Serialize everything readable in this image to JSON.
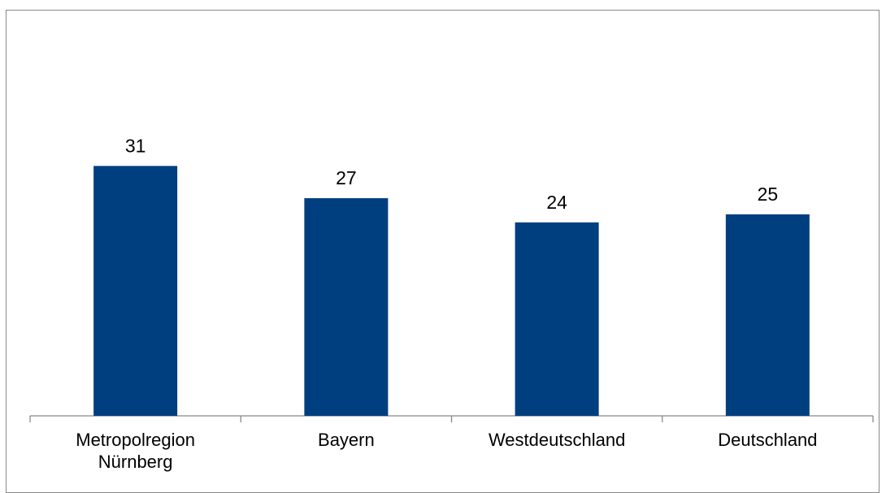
{
  "chart_data": {
    "type": "bar",
    "categories": [
      "Metropolregion\nNürnberg",
      "Bayern",
      "Westdeutschland",
      "Deutschland"
    ],
    "values": [
      31,
      27,
      24,
      25
    ],
    "data_labels": [
      "31",
      "27",
      "24",
      "25"
    ],
    "title": "",
    "xlabel": "",
    "ylabel": "",
    "ylim": [
      0,
      40
    ],
    "grid": false,
    "legend": "none",
    "bar_color": "#003f7f"
  }
}
